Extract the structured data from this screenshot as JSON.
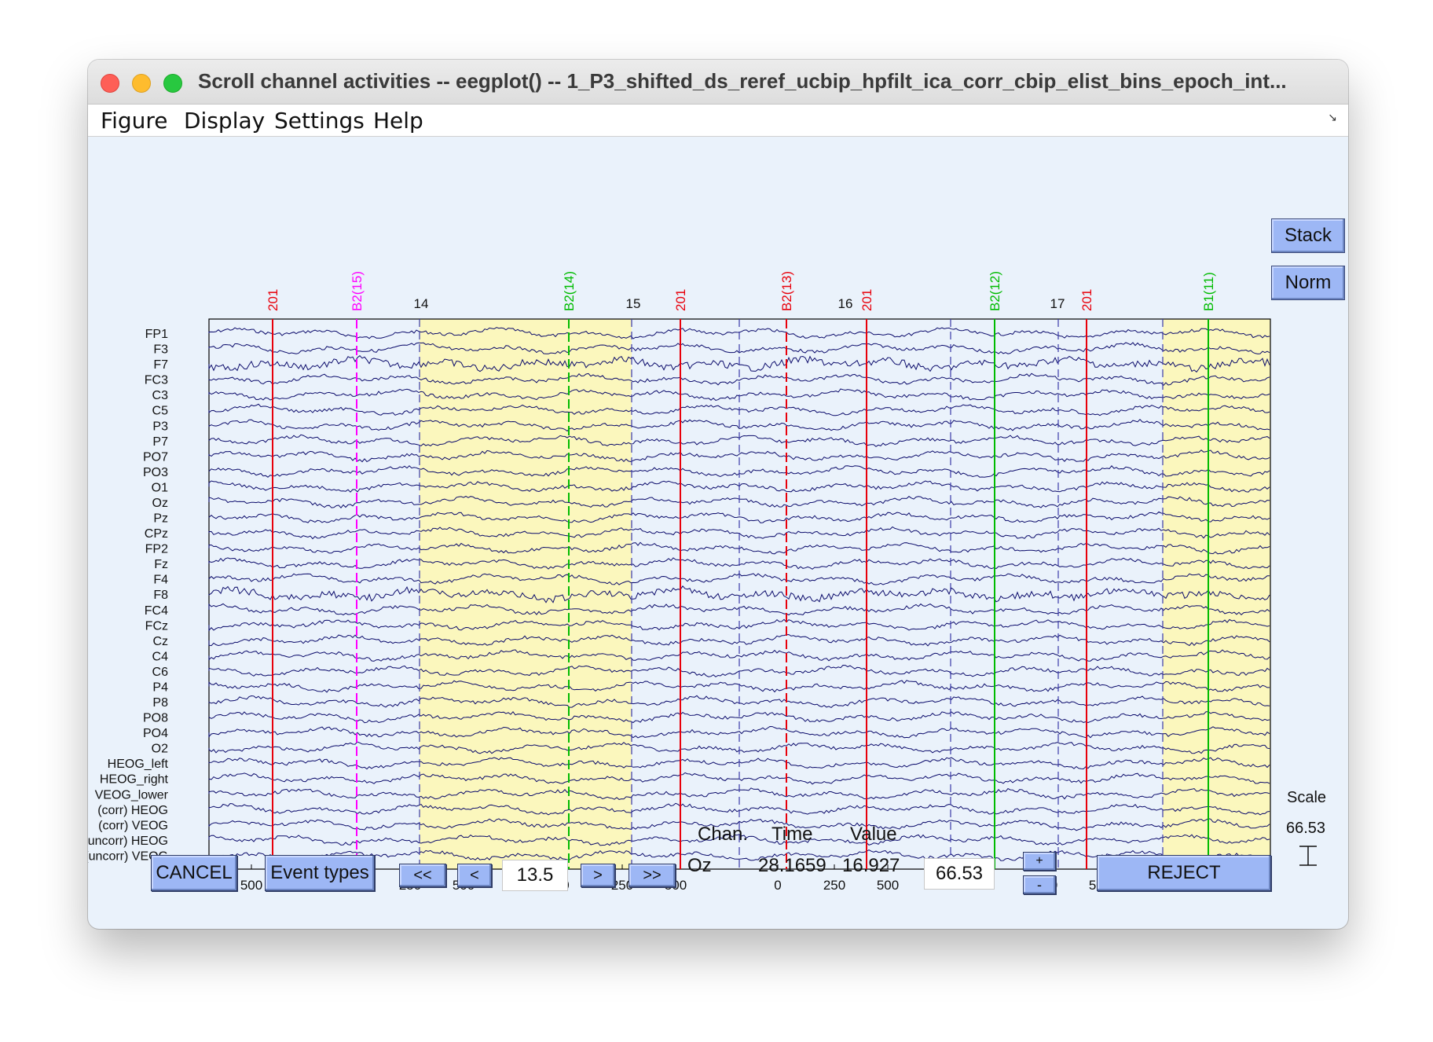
{
  "window": {
    "title": "Scroll channel activities -- eegplot() -- 1_P3_shifted_ds_reref_ucbip_hpfilt_ica_corr_cbip_elist_bins_epoch_int..."
  },
  "menu": {
    "items": [
      "Figure",
      "Display",
      "Settings",
      "Help"
    ]
  },
  "side_buttons": {
    "stack": "Stack",
    "norm": "Norm"
  },
  "scale": {
    "label": "Scale",
    "value": "66.53"
  },
  "channels": [
    "FP1",
    "F3",
    "F7",
    "FC3",
    "C3",
    "C5",
    "P3",
    "P7",
    "PO7",
    "PO3",
    "O1",
    "Oz",
    "Pz",
    "CPz",
    "FP2",
    "Fz",
    "F4",
    "F8",
    "FC4",
    "FCz",
    "Cz",
    "C4",
    "C6",
    "P4",
    "P8",
    "PO8",
    "PO4",
    "O2",
    "HEOG_left",
    "HEOG_right",
    "VEOG_lower",
    "(corr) HEOG",
    "(corr) VEOG",
    "(uncorr) HEOG",
    "(uncorr) VEOG"
  ],
  "epochs": [
    "14",
    "15",
    "16",
    "17"
  ],
  "x_ticks": [
    "500",
    "0",
    "250",
    "500",
    "0",
    "250",
    "500",
    "0",
    "250",
    "500",
    "0",
    "250",
    "500",
    "0",
    "250"
  ],
  "events": [
    {
      "label": "201",
      "color": "#e8000b"
    },
    {
      "label": "B2(15)",
      "color": "#ff00ff"
    },
    {
      "label": "B2(14)",
      "color": "#00bb00"
    },
    {
      "label": "201",
      "color": "#e8000b"
    },
    {
      "label": "B2(13)",
      "color": "#e8000b"
    },
    {
      "label": "201",
      "color": "#e8000b"
    },
    {
      "label": "B2(12)",
      "color": "#00bb00"
    },
    {
      "label": "201",
      "color": "#e8000b"
    },
    {
      "label": "B1(11)",
      "color": "#00bb00"
    }
  ],
  "colors": {
    "trace": "#0b0b6b",
    "rejected_bg": "#fbf7bd",
    "epoch_divider": "#3a3aa8",
    "button": "#9db7f5",
    "panel_bg": "#eaf2fb"
  },
  "controls": {
    "cancel": "CANCEL",
    "event_types": "Event types",
    "first": "<<",
    "prev": "<",
    "position": "13.5",
    "next": ">",
    "last": ">>",
    "chan_label": "Chan.",
    "time_label": "Time",
    "value_label": "Value",
    "chan_value": "Oz",
    "time_value": "28.1659",
    "value_value": "16.927",
    "scale_field": "66.53",
    "plus": "+",
    "minus": "-",
    "reject": "REJECT"
  }
}
